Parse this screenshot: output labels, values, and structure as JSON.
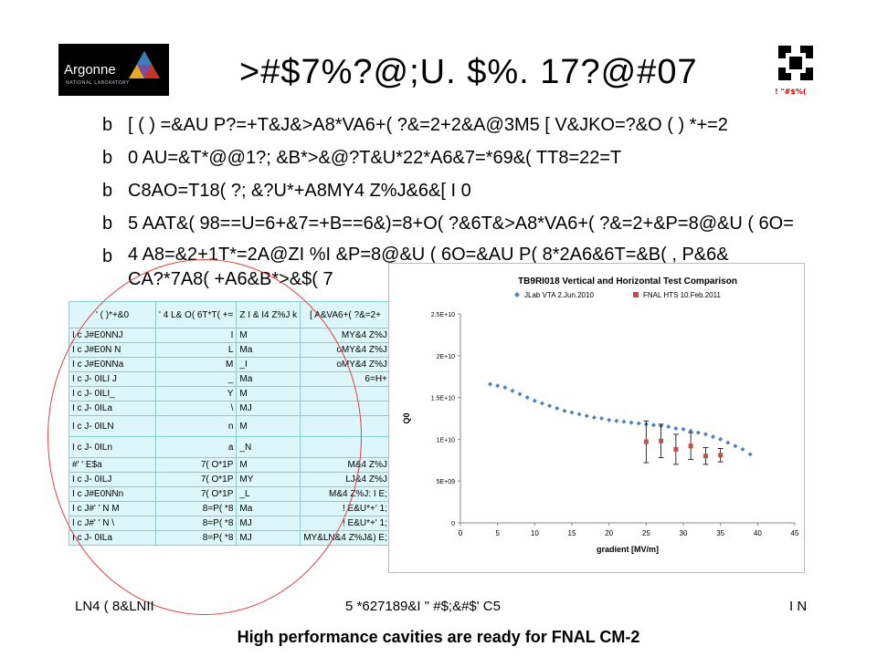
{
  "header": {
    "logo_text": "Argonne",
    "logo_subtext": "NATIONAL LABORATORY",
    "title": ">#$7%?@;U. $%. 17?@#07",
    "fnal_label": "! \"#$%("
  },
  "bullets": [
    {
      "marker": "b",
      "text": "[ ( ) =&AU P?=+T&J&>A8*VA6+( ?&=2+2&A@3M5 [ V&JKO=?&O ( ) *+=2"
    },
    {
      "marker": "b",
      "text": "0 AU=&T*@@1?; &B*>&@?T&U*22*A6&7=*69&( TT8=22=T"
    },
    {
      "marker": "b",
      "text": "C8AO=T18( ?; &?U*+A8MY4 Z%J&6&[ I 0"
    },
    {
      "marker": "b",
      "text": "5 AAT&( 98==U=6+&7=+B==6&)=8+O( ?&6T&>A8*VA6+( ?&=2+&P=8@&U ( 6O="
    },
    {
      "marker": "b",
      "text": "4 A8=&2+1T*=2A@ZI %I &P=8@&U ( 6O=&AU P( 8*2A6&6T=&B( , P&6& CA?*7A8( +A6&B*>&$( 7"
    }
  ],
  "table": {
    "header": [
      "' ( )*+&0",
      "' 4 L& O( 6T*T( +=",
      "Z I & I4 Z%J k",
      "[ A&VA6+( ?&=2+"
    ],
    "rows": [
      [
        "I c J#E0NNJ",
        "I",
        "M",
        "MY&4 Z%J"
      ],
      [
        "I c J#E0N N",
        "L",
        "Ma",
        "oMY&4 Z%J"
      ],
      [
        "I c J#E0NNa",
        "M",
        "_I",
        "oMY&4 Z%J"
      ],
      [
        "I c J- 0ILI J",
        "_",
        "Ma",
        "6=H+"
      ],
      [
        "I c J- 0ILI_",
        "Y",
        "M",
        ""
      ],
      [
        "I c J- 0ILa",
        "\\",
        "MJ",
        ""
      ],
      [
        "I c J- 0ILN",
        "n",
        "M",
        ""
      ],
      [
        "I c J- 0ILn",
        "a",
        "_N",
        ""
      ],
      [
        "#' ' E$a",
        "7( O*1P",
        "M",
        "M&4 Z%J"
      ],
      [
        "I c J- 0ILJ",
        "7( O*1P",
        "MY",
        "LJ&4 Z%J"
      ],
      [
        "I c J#E0NNn",
        "7( O*1P",
        "_L",
        "M&4 Z%J: I E;"
      ],
      [
        "I c J#' ' N M",
        "8=P( *8",
        "Ma",
        "! E&U*+' 1;"
      ],
      [
        "I c J#' ' N \\",
        "8=P( *8",
        "MJ",
        "! E&U*+' 1;"
      ],
      [
        "I c J- 0ILa",
        "8=P( *8",
        "MJ",
        "MY&LN&4 Z%J&) E;"
      ]
    ]
  },
  "chart_data": {
    "type": "scatter",
    "title": "TB9RI018 Vertical and Horizontal Test Comparison",
    "xlabel": "gradient [MV/m]",
    "ylabel": "Q0",
    "xlim": [
      0,
      45
    ],
    "ylim": [
      0,
      25000000000.0
    ],
    "x_ticks": [
      "0",
      "5",
      "10",
      "15",
      "20",
      "25",
      "30",
      "35",
      "40",
      "45"
    ],
    "y_ticks": [
      "0",
      "5E+09",
      "1E+10",
      "1.5E+10",
      "2E+10",
      "2.5E+10"
    ],
    "legend_position": "top",
    "series": [
      {
        "name": "JLab VTA 2.Jun.2010",
        "color": "#4f81bd",
        "marker": "diamond",
        "x": [
          4,
          5,
          6,
          7,
          8,
          9,
          10,
          11,
          12,
          13,
          14,
          15,
          16,
          17,
          18,
          19,
          20,
          21,
          22,
          23,
          24,
          25,
          26,
          27,
          28,
          29,
          30,
          31,
          32,
          33,
          34,
          35,
          36,
          37,
          38,
          39
        ],
        "y": [
          16600000000.0,
          16400000000.0,
          16200000000.0,
          15800000000.0,
          15400000000.0,
          15000000000.0,
          14600000000.0,
          14300000000.0,
          14000000000.0,
          13700000000.0,
          13400000000.0,
          13200000000.0,
          13000000000.0,
          12800000000.0,
          12600000000.0,
          12500000000.0,
          12300000000.0,
          12200000000.0,
          12100000000.0,
          12000000000.0,
          11900000000.0,
          11800000000.0,
          11700000000.0,
          11600000000.0,
          11500000000.0,
          11300000000.0,
          11200000000.0,
          11000000000.0,
          10800000000.0,
          10600000000.0,
          10300000000.0,
          10000000000.0,
          9600000000.0,
          9200000000.0,
          8800000000.0,
          8200000000.0
        ]
      },
      {
        "name": "FNAL HTS 10.Feb.2011",
        "color": "#c0504d",
        "marker": "square",
        "x": [
          25,
          27,
          29,
          31,
          33,
          35
        ],
        "y": [
          9700000000.0,
          9800000000.0,
          8800000000.0,
          9200000000.0,
          8000000000.0,
          8100000000.0
        ],
        "err": [
          2500000000.0,
          2000000000.0,
          1800000000.0,
          1600000000.0,
          1000000000.0,
          800000000.0
        ]
      }
    ]
  },
  "footer": {
    "left": "LN4 ( 8&LNII",
    "center": "5 *627189&I \" #$;&#$' C5",
    "right": "I N"
  },
  "caption": "High performance cavities are ready for FNAL CM-2"
}
